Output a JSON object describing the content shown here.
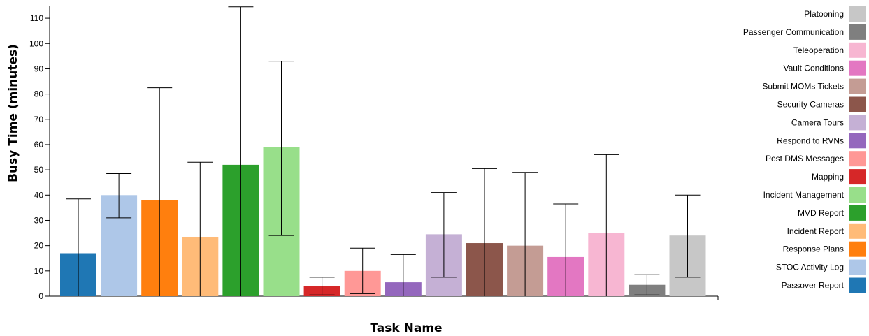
{
  "chart_data": {
    "type": "bar",
    "xlabel": "Task Name",
    "ylabel": "Busy Time (minutes)",
    "ylim": [
      0,
      115
    ],
    "yticks": [
      0,
      10,
      20,
      30,
      40,
      50,
      60,
      70,
      80,
      90,
      100,
      110
    ],
    "grid": false,
    "legend_position": "right",
    "categories": [
      "Passover Report",
      "STOC Activity Log",
      "Response Plans",
      "Incident Report",
      "MVD Report",
      "Incident Management",
      "Mapping",
      "Post DMS Messages",
      "Respond to RVNs",
      "Camera Tours",
      "Security Cameras",
      "Submit MOMs Tickets",
      "Vault Conditions",
      "Teleoperation",
      "Passenger Communication",
      "Platooning"
    ],
    "values": [
      17,
      40,
      38,
      23.5,
      52,
      59,
      4,
      10,
      5.5,
      24.5,
      21,
      20,
      15.5,
      25,
      4.5,
      24
    ],
    "error_low": [
      0,
      31,
      0,
      0,
      0,
      24,
      0.5,
      1,
      0,
      7.5,
      0,
      0,
      0,
      0,
      0.5,
      7.5
    ],
    "error_high": [
      38.5,
      48.5,
      82.5,
      53,
      114.5,
      93,
      7.5,
      19,
      16.5,
      41,
      50.5,
      49,
      36.5,
      56,
      8.5,
      40
    ],
    "colors": [
      "#1f77b4",
      "#aec7e8",
      "#ff7f0e",
      "#ffbb78",
      "#2ca02c",
      "#98df8a",
      "#d62728",
      "#ff9896",
      "#9467bd",
      "#c5b0d5",
      "#8c564b",
      "#c49c94",
      "#e377c2",
      "#f7b6d2",
      "#7f7f7f",
      "#c7c7c7"
    ]
  }
}
